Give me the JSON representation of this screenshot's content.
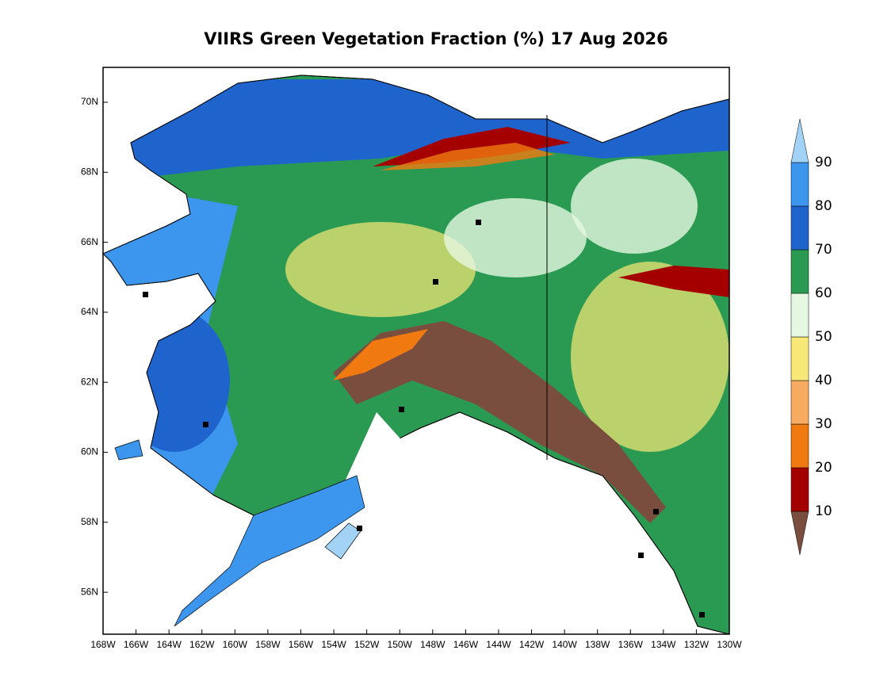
{
  "title": "VIIRS Green Vegetation Fraction (%) 17 Aug 2026",
  "map": {
    "lon_ticks": [
      "168W",
      "166W",
      "164W",
      "162W",
      "160W",
      "158W",
      "156W",
      "154W",
      "152W",
      "150W",
      "148W",
      "146W",
      "144W",
      "142W",
      "140W",
      "138W",
      "136W",
      "134W",
      "132W",
      "130W"
    ],
    "lat_ticks": [
      "70N",
      "68N",
      "66N",
      "64N",
      "62N",
      "60N",
      "58N",
      "56N"
    ]
  },
  "colorbar": {
    "levels": [
      10,
      20,
      30,
      40,
      50,
      60,
      70,
      80,
      90
    ],
    "colors": [
      "#7a4e3e",
      "#a50000",
      "#f07a10",
      "#f8ac62",
      "#f8e878",
      "#e6f8e2",
      "#2a9a52",
      "#1f64cc",
      "#3c96ee",
      "#a2d2f6"
    ]
  }
}
